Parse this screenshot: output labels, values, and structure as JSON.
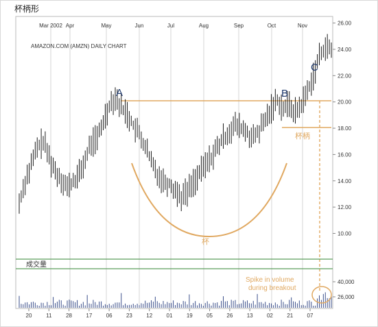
{
  "header": {
    "title": "杯柄形"
  },
  "chart_data": {
    "type": "candlestick",
    "title": "AMAZON.COM (AMZN) DAILY CHART",
    "months": [
      "Mar 2002",
      "Apr",
      "May",
      "Jun",
      "Jul",
      "Aug",
      "Sep",
      "Oct",
      "Nov"
    ],
    "x_ticks": [
      "20",
      "11",
      "28",
      "17",
      "06",
      "23",
      "12",
      "01",
      "19",
      "05",
      "26",
      "13",
      "02",
      "21",
      "07"
    ],
    "price_ticks": [
      "26.00",
      "24.00",
      "22.00",
      "20.00",
      "18.00",
      "16.00",
      "14.00",
      "12.00",
      "10.00"
    ],
    "volume_ticks": [
      "40,000",
      "26,000"
    ],
    "ylim": [
      8.2,
      26.5
    ],
    "series": [
      {
        "values": [
          12.3,
          14.0,
          15.2,
          16.5,
          17.0,
          15.8,
          14.7,
          14.2,
          13.5,
          13.9,
          14.5,
          15.6,
          16.9,
          17.2,
          18.5,
          19.8,
          20.4,
          19.6,
          19.1,
          18.2,
          17.5,
          16.6,
          15.4,
          14.6,
          14.0,
          13.8,
          13.3,
          12.8,
          13.2,
          13.9,
          14.5,
          15.2,
          15.8,
          16.5,
          17.2,
          17.8,
          18.2,
          18.0,
          17.6,
          17.2,
          17.8,
          18.6,
          19.5,
          20.2,
          19.5,
          19.8,
          19.2,
          19.8,
          20.8,
          22.0,
          23.4,
          24.3,
          23.8
        ]
      }
    ],
    "annotations": {
      "point_a": "A",
      "point_b": "B",
      "point_c": "C",
      "cup_label": "杯",
      "handle_label": "杯柄",
      "volume_label": "成交量",
      "volume_note_line1": "Spike in volume",
      "volume_note_line2": "during breakout"
    },
    "colors": {
      "candle": "#1a1a1a",
      "guide": "#e0a860",
      "volume_band": "#5a9e5a",
      "ab_line": "#e0a860",
      "breakout": "#e0a860"
    },
    "grid": "vertical month lines"
  }
}
